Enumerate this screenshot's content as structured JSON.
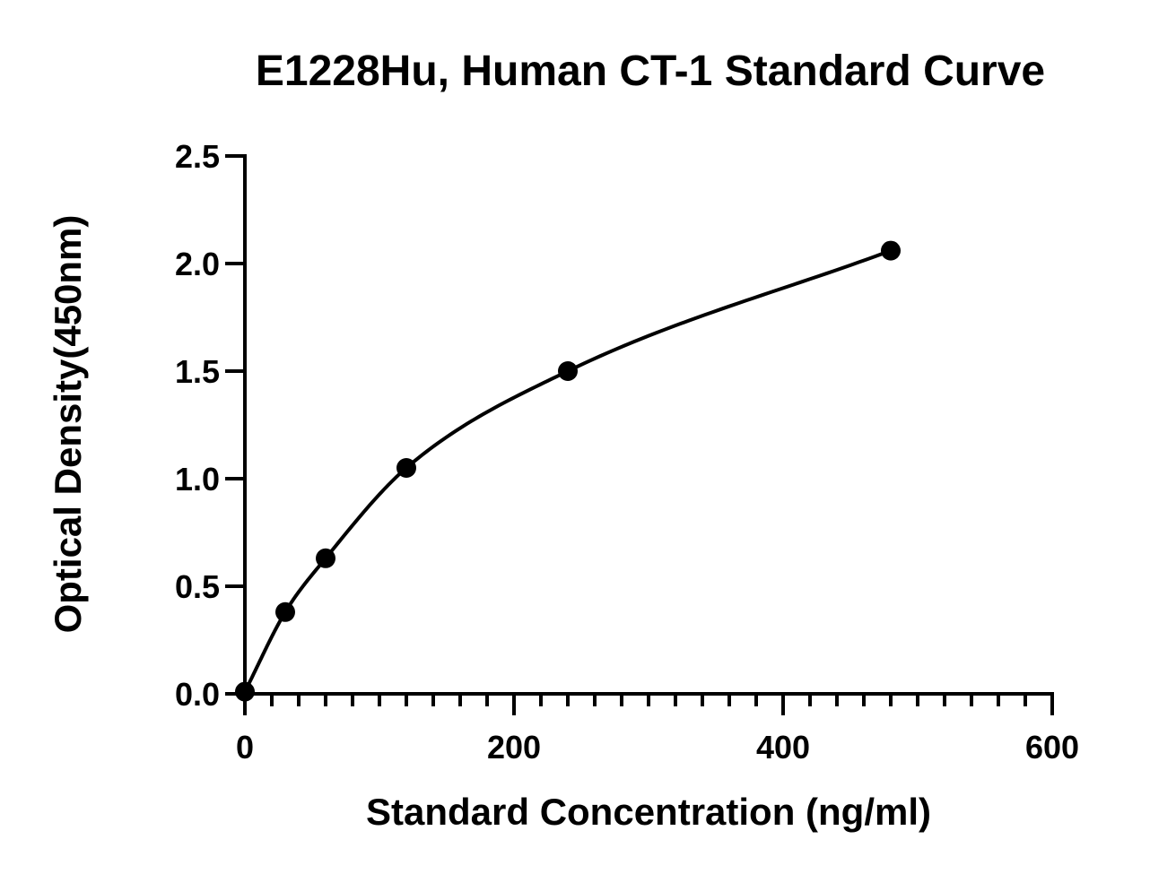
{
  "chart_data": {
    "type": "scatter",
    "title": "E1228Hu, Human CT-1 Standard Curve",
    "xlabel": "Standard Concentration (ng/ml)",
    "ylabel": "Optical Density(450nm)",
    "xlim": [
      0,
      600
    ],
    "ylim": [
      0,
      2.5
    ],
    "x_ticks": [
      0,
      200,
      400,
      600
    ],
    "x_tick_labels": [
      "0",
      "200",
      "400",
      "600"
    ],
    "x_minor_step": 20,
    "y_ticks": [
      0,
      0.5,
      1.0,
      1.5,
      2.0,
      2.5
    ],
    "y_tick_labels": [
      "0.0",
      "0.5",
      "1.0",
      "1.5",
      "2.0",
      "2.5"
    ],
    "grid": false,
    "legend": "none",
    "series": [
      {
        "x": [
          0,
          30,
          60,
          120,
          240,
          480
        ],
        "y": [
          0.01,
          0.38,
          0.63,
          1.05,
          1.5,
          2.06
        ]
      }
    ],
    "fit_curve": "smooth saturation curve through points"
  },
  "colors": {
    "ink": "#000000",
    "background": "#ffffff"
  }
}
